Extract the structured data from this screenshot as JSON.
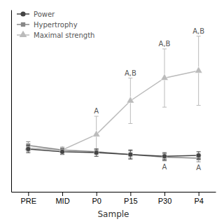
{
  "chart_data": {
    "type": "line",
    "x_label": "Sample",
    "categories": [
      "PRE",
      "MID",
      "P0",
      "P15",
      "P30",
      "P4"
    ],
    "series": [
      {
        "name": "Power",
        "color": "#444444",
        "marker": "circle",
        "values": [
          1.02,
          0.99,
          0.98,
          0.96,
          0.94,
          0.95
        ],
        "errors": [
          0.04,
          0.03,
          0.04,
          0.05,
          0.04,
          0.04
        ]
      },
      {
        "name": "Hypertrophy",
        "color": "#888888",
        "marker": "square",
        "values": [
          1.06,
          1.01,
          0.99,
          0.96,
          0.93,
          0.92
        ],
        "errors": [
          0.04,
          0.03,
          0.03,
          0.04,
          0.04,
          0.04
        ]
      },
      {
        "name": "Maximal strength",
        "color": "#bbbbbb",
        "marker": "triangle",
        "values": [
          1.03,
          1.01,
          1.18,
          1.55,
          1.8,
          1.88
        ],
        "errors": [
          0.04,
          0.03,
          0.2,
          0.25,
          0.32,
          0.38
        ]
      }
    ],
    "annotations": [
      {
        "text": "A",
        "x": "P0",
        "series": "Maximal strength",
        "position": "above"
      },
      {
        "text": "A,B",
        "x": "P15",
        "series": "Maximal strength",
        "position": "above"
      },
      {
        "text": "A,B",
        "x": "P30",
        "series": "Maximal strength",
        "position": "above"
      },
      {
        "text": "A,B",
        "x": "P4",
        "series": "Maximal strength",
        "position": "above"
      },
      {
        "text": "A",
        "x": "P30",
        "series": "Power",
        "position": "below"
      },
      {
        "text": "A",
        "x": "P4",
        "series": "Power",
        "position": "below"
      }
    ],
    "ylim": [
      0.55,
      2.55
    ],
    "tick_labels": "x",
    "grid": false,
    "legend": "upper left"
  }
}
